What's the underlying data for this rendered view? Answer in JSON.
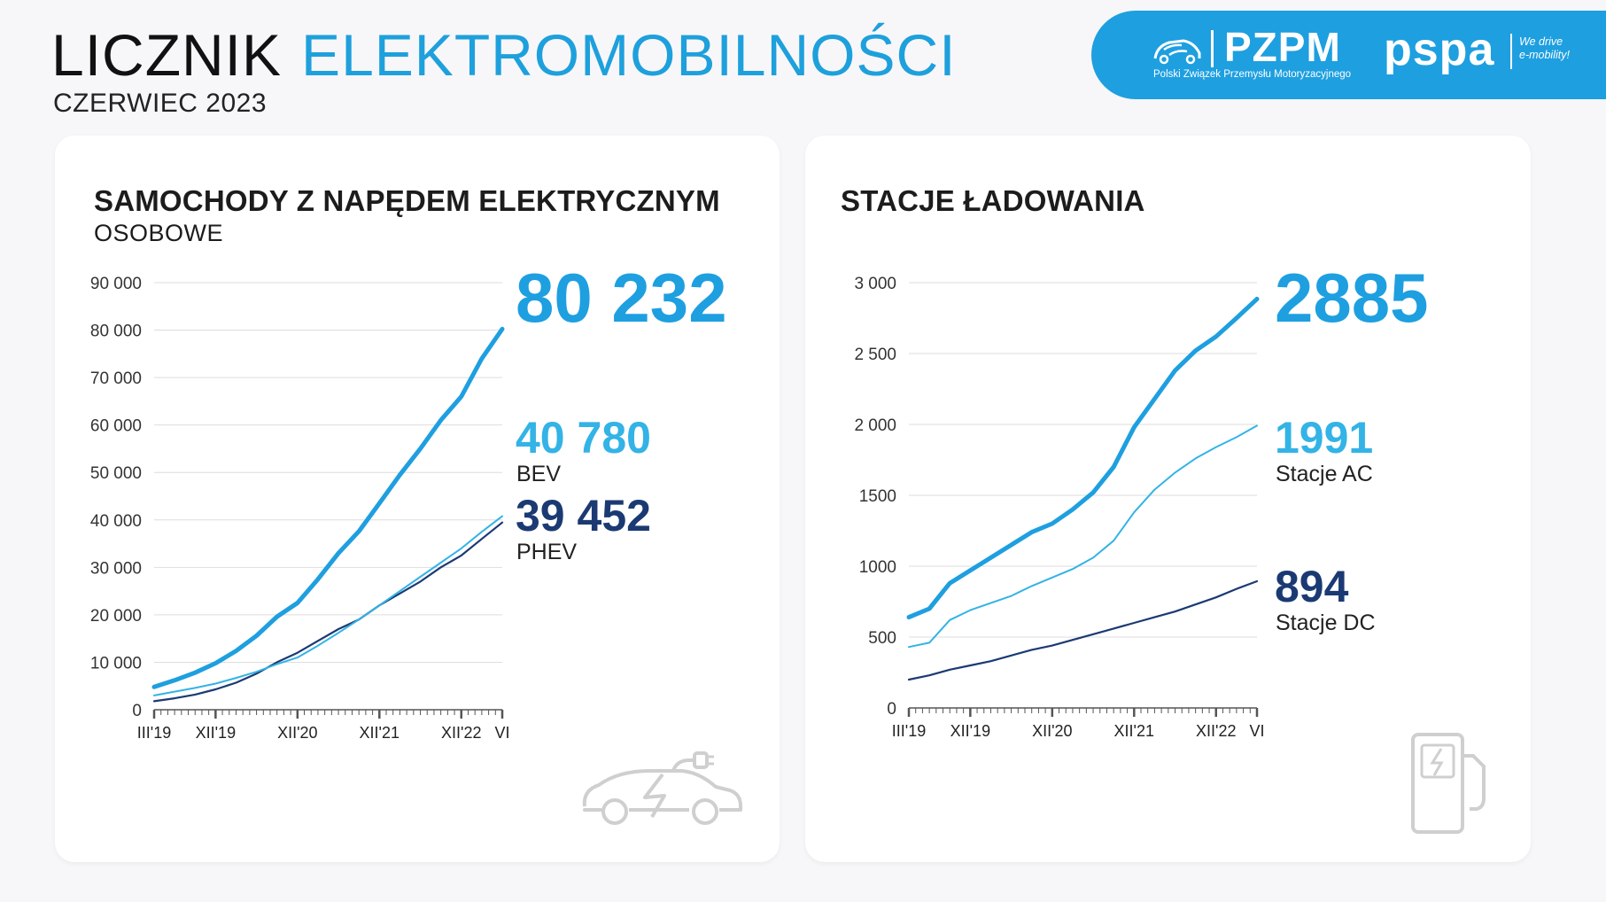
{
  "header": {
    "title_part1": "LICZNIK",
    "title_part2": "ELEKTROMOBILNOŚCI",
    "date": "CZERWIEC 2023"
  },
  "logos": {
    "pzpm_name": "PZPM",
    "pzpm_full": "Polski Związek Przemysłu Motoryzacyjnego",
    "pspa_name": "pspa",
    "pspa_tagline_1": "We drive",
    "pspa_tagline_2": "e-mobility!"
  },
  "colors": {
    "accent": "#1e9fe0",
    "bev": "#33b3e6",
    "dark": "#1b3a73",
    "grid": "#dedede"
  },
  "icons": {
    "left_panel": "electric-car-icon",
    "right_panel": "charging-station-icon",
    "pzpm": "pzpm-car-logo-icon"
  },
  "left_panel": {
    "title": "SAMOCHODY Z NAPĘDEM ELEKTRYCZNYM",
    "subtitle": "OSOBOWE",
    "total_value": "80 232",
    "bev_value": "40 780",
    "bev_label": "BEV",
    "phev_value": "39 452",
    "phev_label": "PHEV"
  },
  "right_panel": {
    "title": "STACJE ŁADOWANIA",
    "total_value": "2885",
    "ac_value": "1991",
    "ac_label": "Stacje AC",
    "dc_value": "894",
    "dc_label": "Stacje DC"
  },
  "chart_data": [
    {
      "type": "line",
      "title": "SAMOCHODY Z NAPĘDEM ELEKTRYCZNYM",
      "subtitle": "OSOBOWE",
      "x_tick_labels": [
        "III'19",
        "XII'19",
        "XII'20",
        "XII'21",
        "XII'22",
        "VI"
      ],
      "x_range": [
        "2019-03",
        "2023-06"
      ],
      "ylim": [
        0,
        90000
      ],
      "yticks": [
        0,
        10000,
        20000,
        30000,
        40000,
        50000,
        60000,
        70000,
        80000,
        90000
      ],
      "ytick_labels": [
        "0",
        "10 000",
        "20 000",
        "30 000",
        "40 000",
        "50 000",
        "60 000",
        "70 000",
        "80 000",
        "90 000"
      ],
      "grid": true,
      "x": [
        "2019-03",
        "2019-06",
        "2019-09",
        "2019-12",
        "2020-03",
        "2020-06",
        "2020-09",
        "2020-12",
        "2021-03",
        "2021-06",
        "2021-09",
        "2021-12",
        "2022-03",
        "2022-06",
        "2022-09",
        "2022-12",
        "2023-03",
        "2023-06"
      ],
      "series": [
        {
          "name": "",
          "color": "#1e9fe0",
          "values": [
            4800,
            6200,
            7800,
            9800,
            12400,
            15600,
            19600,
            22500,
            27500,
            33000,
            37600,
            43500,
            49500,
            55000,
            61000,
            66000,
            74000,
            80232
          ]
        },
        {
          "name": "BEV",
          "color": "#33b3e6",
          "values": [
            3000,
            3800,
            4600,
            5500,
            6700,
            8000,
            9600,
            11000,
            13500,
            16200,
            19000,
            22000,
            25000,
            28000,
            31000,
            34000,
            37500,
            40780
          ]
        },
        {
          "name": "PHEV",
          "color": "#1b3a73",
          "values": [
            1800,
            2400,
            3200,
            4300,
            5700,
            7600,
            10000,
            12000,
            14500,
            17000,
            19000,
            22000,
            24500,
            27000,
            30000,
            32500,
            36000,
            39452
          ]
        }
      ]
    },
    {
      "type": "line",
      "title": "STACJE ŁADOWANIA",
      "x_tick_labels": [
        "III'19",
        "XII'19",
        "XII'20",
        "XII'21",
        "XII'22",
        "VI"
      ],
      "x_range": [
        "2019-03",
        "2023-06"
      ],
      "ylim": [
        0,
        3000
      ],
      "yticks": [
        0,
        500,
        1000,
        1500,
        2000,
        2500,
        3000
      ],
      "ytick_labels": [
        "0",
        "500",
        "1000",
        "1500",
        "2 000",
        "2 500",
        "3 000"
      ],
      "grid": true,
      "x": [
        "2019-03",
        "2019-06",
        "2019-09",
        "2019-12",
        "2020-03",
        "2020-06",
        "2020-09",
        "2020-12",
        "2021-03",
        "2021-06",
        "2021-09",
        "2021-12",
        "2022-03",
        "2022-06",
        "2022-09",
        "2022-12",
        "2023-03",
        "2023-06"
      ],
      "series": [
        {
          "name": "",
          "color": "#1e9fe0",
          "values": [
            640,
            700,
            880,
            970,
            1060,
            1150,
            1240,
            1300,
            1400,
            1520,
            1700,
            1980,
            2180,
            2380,
            2520,
            2620,
            2750,
            2885
          ]
        },
        {
          "name": "Stacje AC",
          "color": "#33b3e6",
          "values": [
            430,
            460,
            620,
            690,
            740,
            790,
            860,
            920,
            980,
            1060,
            1180,
            1380,
            1540,
            1660,
            1760,
            1840,
            1910,
            1991
          ]
        },
        {
          "name": "Stacje DC",
          "color": "#1b3a73",
          "values": [
            200,
            230,
            270,
            300,
            330,
            370,
            410,
            440,
            480,
            520,
            560,
            600,
            640,
            680,
            730,
            780,
            840,
            894
          ]
        }
      ]
    }
  ]
}
